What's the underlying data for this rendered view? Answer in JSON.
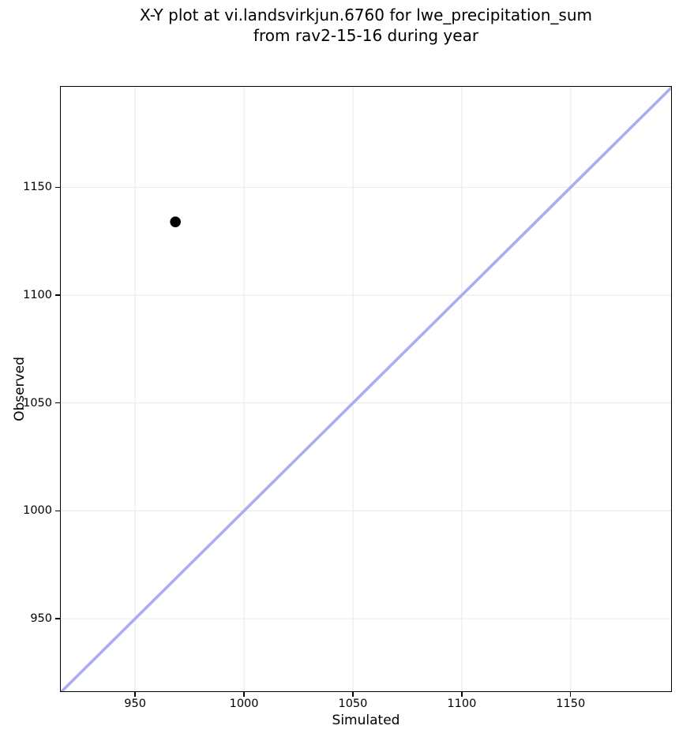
{
  "chart_data": {
    "type": "scatter",
    "title": "X-Y plot at vi.landsvirkjun.6760 for lwe_precipitation_sum\nfrom rav2-15-16 during year",
    "xlabel": "Simulated",
    "ylabel": "Observed",
    "xlim": [
      915.5,
      1196.5
    ],
    "ylim": [
      916,
      1197
    ],
    "xticks": [
      950,
      1000,
      1050,
      1100,
      1150
    ],
    "yticks": [
      950,
      1000,
      1050,
      1100,
      1150
    ],
    "grid": true,
    "grid_color": "#ececec",
    "background_color": "#ffffff",
    "spine_color": "#000000",
    "legend": null,
    "series": [
      {
        "name": "identity-line",
        "type": "line",
        "color": "#a8aef0",
        "line_width": 3.6,
        "points": [
          {
            "x": 915,
            "y": 915
          },
          {
            "x": 1197,
            "y": 1197
          }
        ]
      },
      {
        "name": "observations",
        "type": "scatter",
        "color": "#000000",
        "marker": "circle",
        "marker_radius": 6.8,
        "points": [
          {
            "x": 968.5,
            "y": 1134
          }
        ]
      }
    ]
  }
}
